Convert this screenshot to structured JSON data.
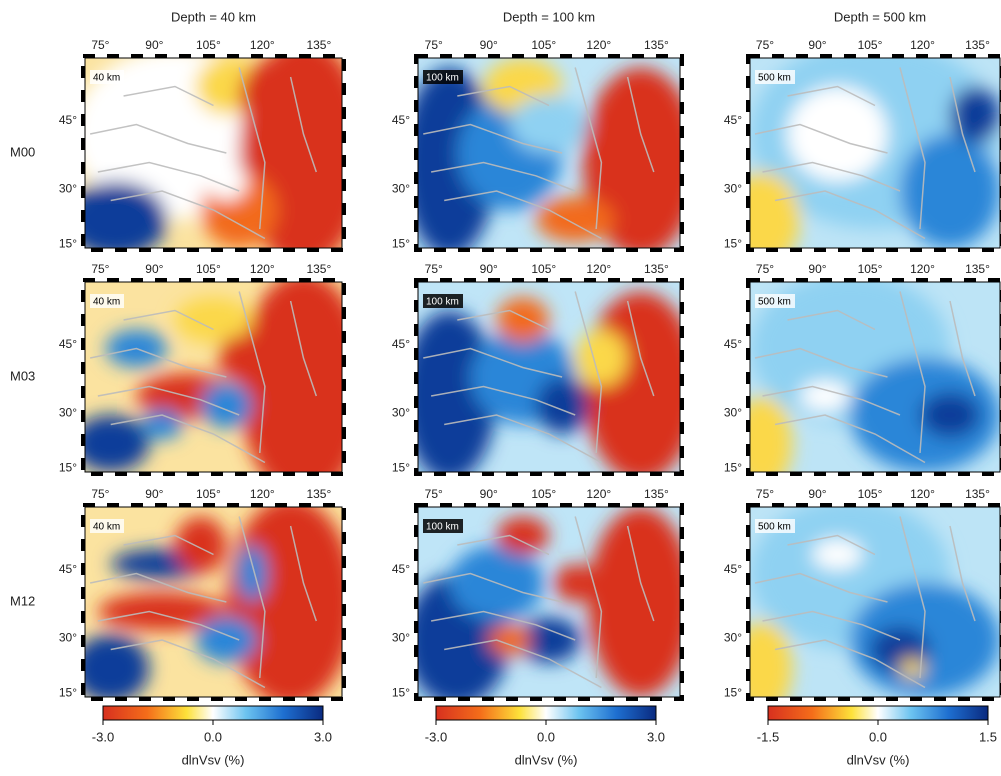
{
  "columns": [
    {
      "title": "Depth = 40 km",
      "panel_label": "40 km",
      "colorbar": {
        "ticks": [
          "-3.0",
          "0.0",
          "3.0"
        ],
        "label": "dlnVsv (%)"
      }
    },
    {
      "title": "Depth = 100 km",
      "panel_label": "100 km",
      "colorbar": {
        "ticks": [
          "-3.0",
          "0.0",
          "3.0"
        ],
        "label": "dlnVsv (%)"
      }
    },
    {
      "title": "Depth = 500 km",
      "panel_label": "500 km",
      "colorbar": {
        "ticks": [
          "-1.5",
          "0.0",
          "1.5"
        ],
        "label": "dlnVsv (%)"
      }
    }
  ],
  "rows": [
    "M00",
    "M03",
    "M12"
  ],
  "lon_ticks": [
    "75°",
    "90°",
    "105°",
    "120°",
    "135°"
  ],
  "lat_ticks": [
    "45°",
    "30°",
    "15°"
  ]
}
